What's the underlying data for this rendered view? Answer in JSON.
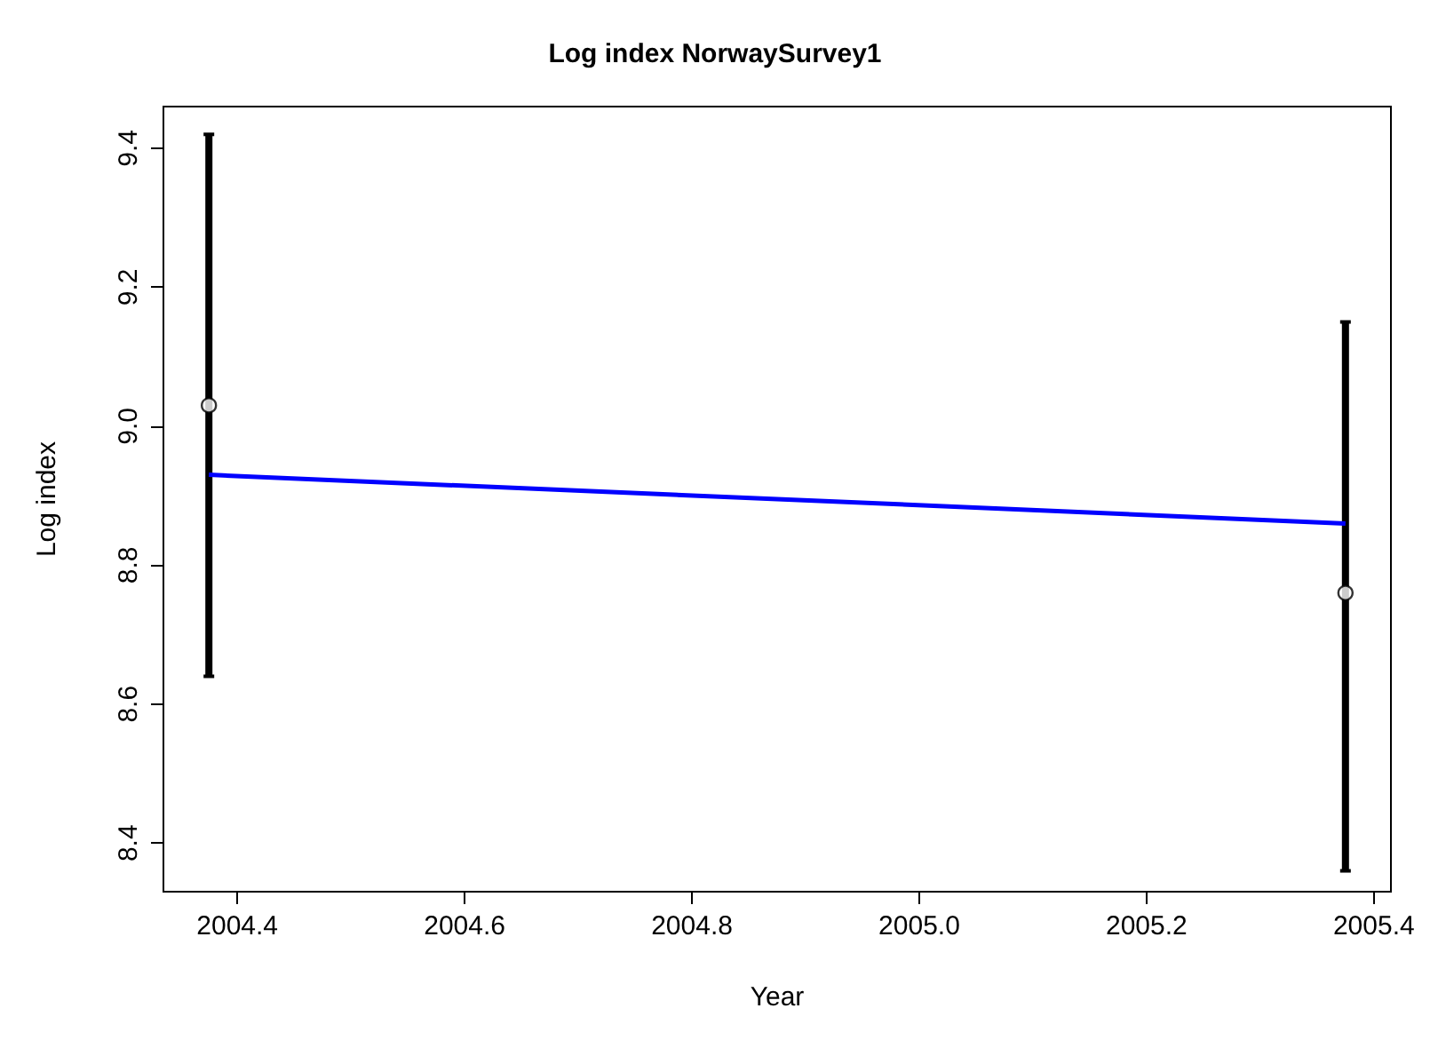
{
  "chart_data": {
    "type": "scatter",
    "title": "Log index NorwaySurvey1",
    "xlabel": "Year",
    "ylabel": "Log index",
    "series": [
      {
        "values": [
          9.03,
          8.76
        ],
        "errors": [
          [
            8.64,
            9.42
          ],
          [
            8.36,
            9.15
          ]
        ],
        "color": "#000000",
        "marker": "circle"
      },
      {
        "type": "line",
        "values": [
          8.93,
          8.86
        ],
        "color": "#0000ff",
        "marker": "none"
      }
    ],
    "x": [
      2004.375,
      2005.375
    ],
    "xlim": [
      2004.335,
      2005.415
    ],
    "xticks": [
      {
        "value": 2004.4,
        "label": "2004.4"
      },
      {
        "value": 2004.6,
        "label": "2004.6"
      },
      {
        "value": 2004.8,
        "label": "2004.8"
      },
      {
        "value": 2005.0,
        "label": "2005.0"
      },
      {
        "value": 2005.2,
        "label": "2005.2"
      },
      {
        "value": 2005.4,
        "label": "2005.4"
      }
    ],
    "ylim": [
      8.33,
      9.46
    ],
    "yticks": [
      {
        "value": 8.4,
        "label": "8.4"
      },
      {
        "value": 8.6,
        "label": "8.6"
      },
      {
        "value": 8.8,
        "label": "8.8"
      },
      {
        "value": 9.0,
        "label": "9.0"
      },
      {
        "value": 9.2,
        "label": "9.2"
      },
      {
        "value": 9.4,
        "label": "9.4"
      }
    ],
    "grid": false
  }
}
